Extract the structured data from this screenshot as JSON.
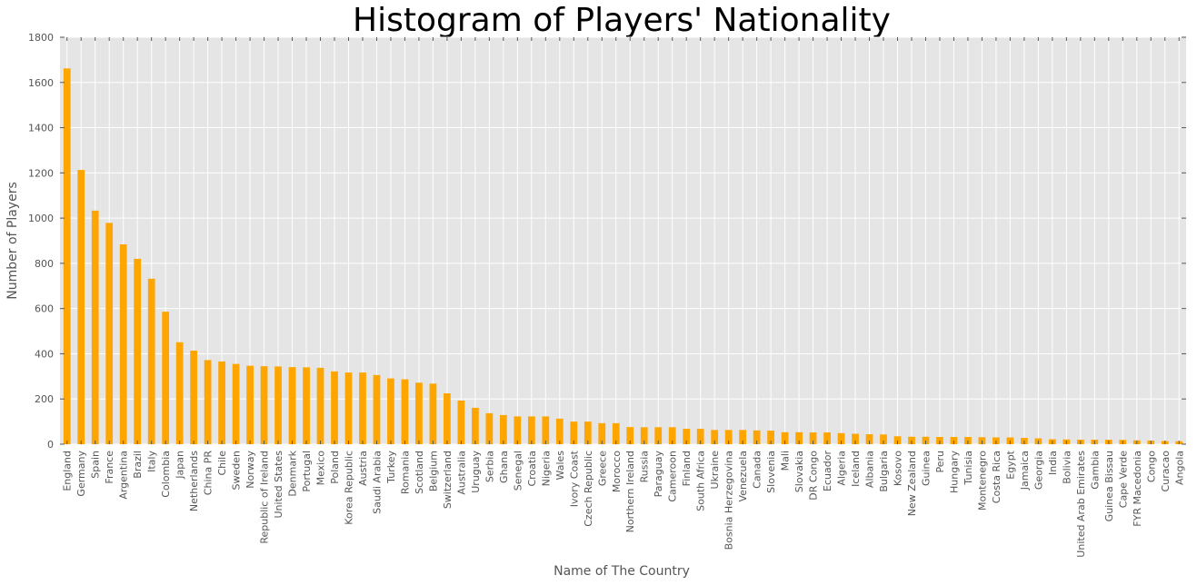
{
  "chart_data": {
    "type": "bar",
    "title": "Histogram of Players' Nationality",
    "xlabel": "Name of The Country",
    "ylabel": "Number of Players",
    "ylim": [
      0,
      1800
    ],
    "yticks": [
      0,
      200,
      400,
      600,
      800,
      1000,
      1200,
      1400,
      1600,
      1800
    ],
    "grid": true,
    "bar_color": "#FFA500",
    "background_color": "#E5E5E5",
    "grid_color": "#FFFFFF",
    "categories": [
      "England",
      "Germany",
      "Spain",
      "France",
      "Argentina",
      "Brazil",
      "Italy",
      "Colombia",
      "Japan",
      "Netherlands",
      "China PR",
      "Chile",
      "Sweden",
      "Norway",
      "Republic of Ireland",
      "United States",
      "Denmark",
      "Portugal",
      "Mexico",
      "Poland",
      "Korea Republic",
      "Austria",
      "Saudi Arabia",
      "Turkey",
      "Romania",
      "Scotland",
      "Belgium",
      "Switzerland",
      "Australia",
      "Uruguay",
      "Serbia",
      "Ghana",
      "Senegal",
      "Croatia",
      "Nigeria",
      "Wales",
      "Ivory Coast",
      "Czech Republic",
      "Greece",
      "Morocco",
      "Northern Ireland",
      "Russia",
      "Paraguay",
      "Cameroon",
      "Finland",
      "South Africa",
      "Ukraine",
      "Bosnia Herzegovina",
      "Venezuela",
      "Canada",
      "Slovenia",
      "Mali",
      "Slovakia",
      "DR Congo",
      "Ecuador",
      "Algeria",
      "Iceland",
      "Albania",
      "Bulgaria",
      "Kosovo",
      "New Zealand",
      "Guinea",
      "Peru",
      "Hungary",
      "Tunisia",
      "Montenegro",
      "Costa Rica",
      "Egypt",
      "Jamaica",
      "Georgia",
      "India",
      "Bolivia",
      "United Arab Emirates",
      "Gambia",
      "Guinea Bissau",
      "Cape Verde",
      "FYR Macedonia",
      "Congo",
      "Curacao",
      "Angola"
    ],
    "values": [
      1662,
      1213,
      1033,
      979,
      884,
      820,
      732,
      586,
      451,
      414,
      372,
      366,
      355,
      347,
      345,
      344,
      341,
      340,
      338,
      322,
      317,
      317,
      306,
      291,
      287,
      272,
      268,
      225,
      193,
      161,
      137,
      129,
      123,
      123,
      123,
      113,
      100,
      100,
      93,
      93,
      76,
      75,
      75,
      75,
      68,
      68,
      63,
      63,
      63,
      61,
      60,
      53,
      53,
      52,
      52,
      49,
      46,
      44,
      43,
      35,
      33,
      33,
      32,
      32,
      32,
      31,
      30,
      30,
      28,
      26,
      22,
      21,
      20,
      20,
      20,
      19,
      17,
      16,
      14,
      13
    ]
  }
}
